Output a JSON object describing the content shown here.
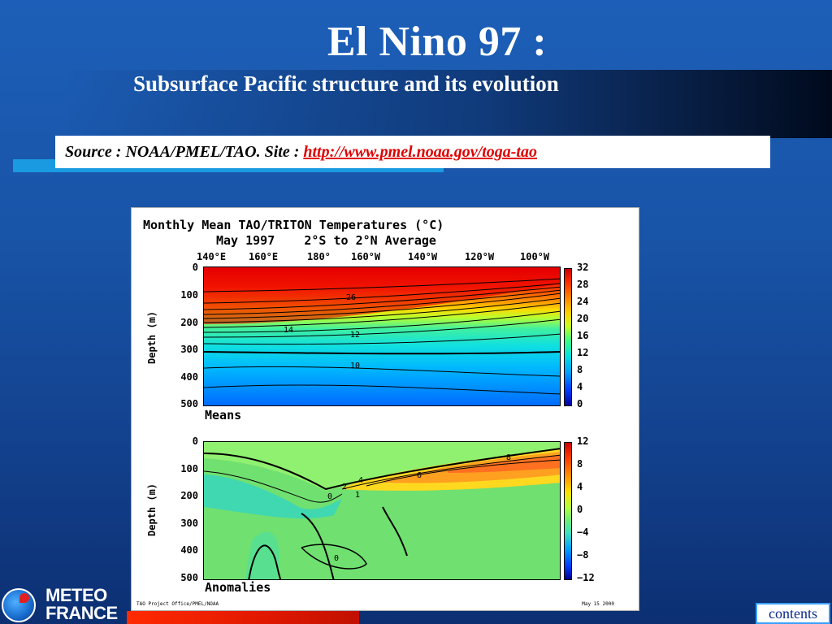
{
  "slide": {
    "title": "El Nino 97 :",
    "subtitle": "Subsurface Pacific structure and its evolution",
    "source_prefix": "Source : NOAA/PMEL/TAO.  Site : ",
    "source_link": "http://www.pmel.noaa.gov/toga-tao"
  },
  "figure": {
    "title": "Monthly Mean TAO/TRITON Temperatures (°C)",
    "subtitle": "May 1997    2°S to 2°N Average",
    "longitudes": [
      "140°E",
      "160°E",
      "180°",
      "160°W",
      "140°W",
      "120°W",
      "100°W"
    ],
    "ylabel": "Depth (m)",
    "depth_ticks": [
      "0",
      "100",
      "200",
      "300",
      "400",
      "500"
    ],
    "means": {
      "label": "Means",
      "colorbar_ticks": [
        "32",
        "28",
        "24",
        "20",
        "16",
        "12",
        "8",
        "4",
        "0"
      ],
      "contour_labels": [
        "26",
        "14",
        "12",
        "10"
      ]
    },
    "anomalies": {
      "label": "Anomalies",
      "colorbar_ticks": [
        "12",
        "8",
        "4",
        "0",
        "−4",
        "−8",
        "−12"
      ],
      "contour_labels": [
        "4",
        "6",
        "8",
        "2",
        "0",
        "1",
        "0"
      ]
    },
    "footer_left": "TAO Project Office/PMEL/NOAA",
    "footer_right": "May 15 2000"
  },
  "logo": {
    "line1": "METEO",
    "line2": "FRANCE"
  },
  "nav": {
    "contents_label": "contents"
  },
  "colors": {
    "background": "#1853a6",
    "accent_cyan": "#1a9ae0",
    "accent_red": "#e01800",
    "link": "#e00000"
  }
}
